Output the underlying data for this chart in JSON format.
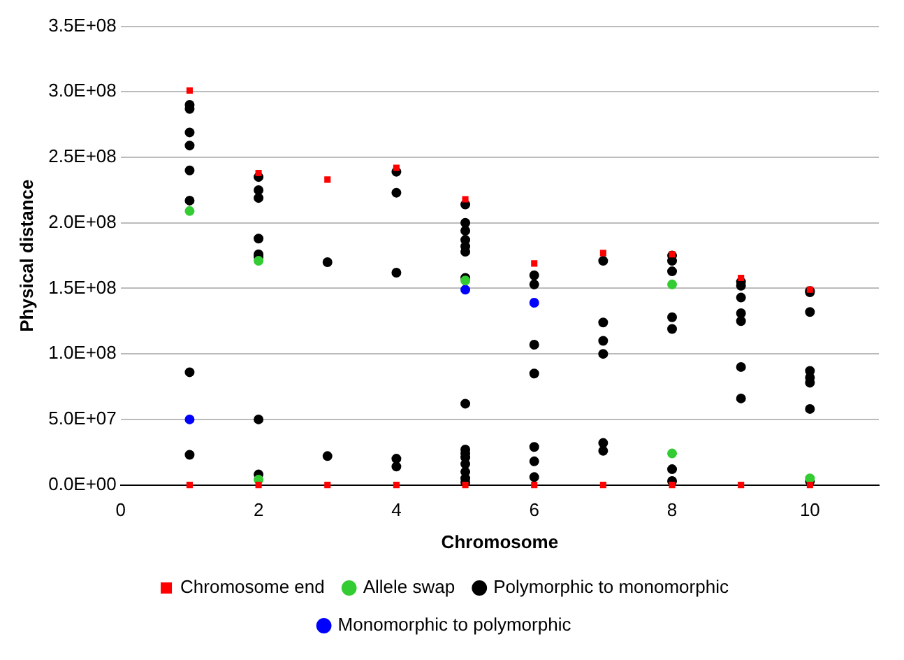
{
  "chart_data": {
    "type": "scatter",
    "xlabel": "Chromosome",
    "ylabel": "Physical distance",
    "xlim": [
      0,
      11
    ],
    "xticks": [
      0,
      2,
      4,
      6,
      8,
      10
    ],
    "ylim": [
      0,
      350000000
    ],
    "yticks": [
      {
        "value": 0,
        "label": "0.0E+00"
      },
      {
        "value": 50000000,
        "label": "5.0E+07"
      },
      {
        "value": 100000000,
        "label": "1.0E+08"
      },
      {
        "value": 150000000,
        "label": "1.5E+08"
      },
      {
        "value": 200000000,
        "label": "2.0E+08"
      },
      {
        "value": 250000000,
        "label": "2.5E+08"
      },
      {
        "value": 300000000,
        "label": "3.0E+08"
      },
      {
        "value": 350000000,
        "label": "3.5E+08"
      }
    ],
    "grid": "y",
    "legend": "bottom",
    "series": [
      {
        "name": "Chromosome end",
        "color": "#ff0000",
        "marker": "square",
        "x": [
          1,
          1,
          2,
          2,
          3,
          3,
          4,
          4,
          5,
          5,
          6,
          6,
          7,
          7,
          8,
          8,
          9,
          9,
          10,
          10
        ],
        "values": [
          301000000,
          0,
          238000000,
          0,
          233000000,
          0,
          242000000,
          0,
          218000000,
          0,
          169000000,
          0,
          177000000,
          0,
          176000000,
          0,
          158000000,
          0,
          149000000,
          0
        ]
      },
      {
        "name": "Allele swap",
        "color": "#33cc33",
        "marker": "circle",
        "x": [
          1,
          2,
          2,
          5,
          8,
          8,
          10
        ],
        "values": [
          209000000,
          171000000,
          4000000,
          156000000,
          153000000,
          24000000,
          5000000
        ]
      },
      {
        "name": "Polymorphic to monomorphic",
        "color": "#000000",
        "marker": "circle",
        "x": [
          1,
          1,
          1,
          1,
          1,
          1,
          1,
          1,
          2,
          2,
          2,
          2,
          2,
          2,
          2,
          2,
          3,
          3,
          4,
          4,
          4,
          4,
          4,
          5,
          5,
          5,
          5,
          5,
          5,
          5,
          5,
          5,
          5,
          5,
          5,
          5,
          5,
          5,
          6,
          6,
          6,
          6,
          6,
          6,
          6,
          7,
          7,
          7,
          7,
          7,
          7,
          8,
          8,
          8,
          8,
          8,
          8,
          8,
          9,
          9,
          9,
          9,
          9,
          9,
          9,
          10,
          10,
          10,
          10,
          10,
          10,
          10,
          10
        ],
        "values": [
          290000000,
          287000000,
          269000000,
          259000000,
          240000000,
          217000000,
          86000000,
          23000000,
          235000000,
          225000000,
          219000000,
          188000000,
          176000000,
          174000000,
          50000000,
          8000000,
          170000000,
          22000000,
          239000000,
          223000000,
          162000000,
          20000000,
          14000000,
          214000000,
          200000000,
          194000000,
          187000000,
          182000000,
          178000000,
          158000000,
          62000000,
          27000000,
          24000000,
          21000000,
          16000000,
          10000000,
          5000000,
          2000000,
          160000000,
          153000000,
          107000000,
          85000000,
          29000000,
          18000000,
          6000000,
          171000000,
          124000000,
          110000000,
          100000000,
          32000000,
          26000000,
          175000000,
          171000000,
          163000000,
          128000000,
          119000000,
          12000000,
          3000000,
          155000000,
          152000000,
          143000000,
          131000000,
          125000000,
          90000000,
          66000000,
          148000000,
          147000000,
          132000000,
          87000000,
          82000000,
          78000000,
          58000000,
          3000000
        ]
      },
      {
        "name": "Monomorphic to polymorphic",
        "color": "#0000ff",
        "marker": "circle",
        "x": [
          1,
          5,
          6
        ],
        "values": [
          50000000,
          149000000,
          139000000
        ]
      }
    ]
  }
}
